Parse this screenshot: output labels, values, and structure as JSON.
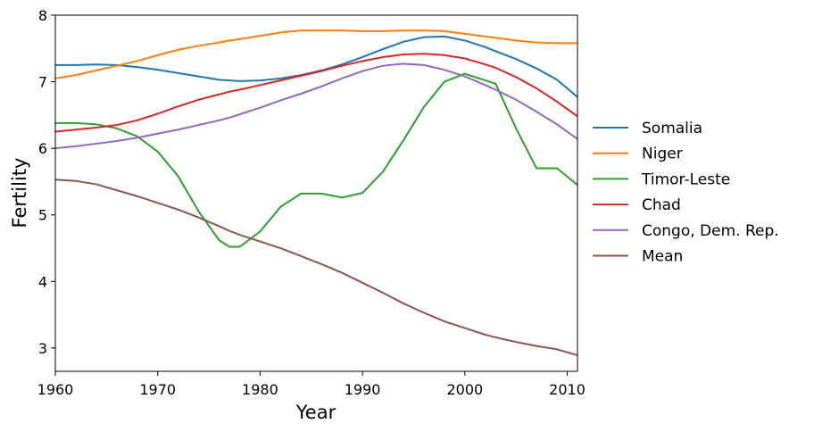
{
  "chart_data": {
    "type": "line",
    "xlabel": "Year",
    "ylabel": "Fertility",
    "x": [
      1960,
      1962,
      1964,
      1966,
      1968,
      1970,
      1972,
      1974,
      1976,
      1977,
      1978,
      1980,
      1982,
      1984,
      1986,
      1988,
      1990,
      1992,
      1994,
      1996,
      1998,
      2000,
      2002,
      2003,
      2005,
      2007,
      2009,
      2011
    ],
    "series": [
      {
        "name": "Somalia",
        "color": "#1f77b4",
        "values": [
          7.25,
          7.25,
          7.26,
          7.25,
          7.22,
          7.18,
          7.13,
          7.08,
          7.03,
          7.02,
          7.01,
          7.02,
          7.05,
          7.1,
          7.17,
          7.26,
          7.37,
          7.49,
          7.6,
          7.67,
          7.68,
          7.62,
          7.52,
          7.46,
          7.34,
          7.2,
          7.03,
          6.77
        ]
      },
      {
        "name": "Niger",
        "color": "#ff7f0e",
        "values": [
          7.05,
          7.1,
          7.17,
          7.24,
          7.31,
          7.4,
          7.48,
          7.54,
          7.59,
          7.62,
          7.64,
          7.69,
          7.74,
          7.77,
          7.77,
          7.77,
          7.76,
          7.76,
          7.77,
          7.77,
          7.76,
          7.72,
          7.68,
          7.66,
          7.62,
          7.59,
          7.58,
          7.58
        ]
      },
      {
        "name": "Timor-Leste",
        "color": "#2ca02c",
        "values": [
          6.38,
          6.38,
          6.36,
          6.3,
          6.18,
          5.95,
          5.58,
          5.05,
          4.62,
          4.52,
          4.52,
          4.75,
          5.12,
          5.32,
          5.32,
          5.26,
          5.33,
          5.65,
          6.12,
          6.62,
          7.0,
          7.12,
          7.02,
          6.97,
          6.3,
          5.7,
          5.7,
          5.45
        ]
      },
      {
        "name": "Chad",
        "color": "#d62728",
        "values": [
          6.25,
          6.28,
          6.31,
          6.35,
          6.42,
          6.52,
          6.63,
          6.73,
          6.81,
          6.85,
          6.88,
          6.95,
          7.02,
          7.09,
          7.16,
          7.24,
          7.31,
          7.37,
          7.41,
          7.42,
          7.4,
          7.35,
          7.26,
          7.21,
          7.07,
          6.9,
          6.7,
          6.48
        ]
      },
      {
        "name": "Congo, Dem. Rep.",
        "color": "#9467bd",
        "values": [
          6.0,
          6.03,
          6.07,
          6.11,
          6.16,
          6.22,
          6.28,
          6.35,
          6.42,
          6.46,
          6.51,
          6.61,
          6.72,
          6.82,
          6.93,
          7.05,
          7.16,
          7.24,
          7.27,
          7.25,
          7.18,
          7.08,
          6.95,
          6.88,
          6.73,
          6.55,
          6.36,
          6.14
        ]
      },
      {
        "name": "Mean",
        "color": "#8c564b",
        "values": [
          5.53,
          5.51,
          5.46,
          5.37,
          5.28,
          5.18,
          5.08,
          4.96,
          4.83,
          4.76,
          4.7,
          4.6,
          4.5,
          4.38,
          4.26,
          4.13,
          3.98,
          3.83,
          3.67,
          3.53,
          3.4,
          3.3,
          3.2,
          3.16,
          3.09,
          3.03,
          2.98,
          2.89
        ]
      }
    ],
    "xlim": [
      1960,
      2011
    ],
    "ylim": [
      2.65,
      8.0
    ],
    "xticks": [
      1960,
      1970,
      1980,
      1990,
      2000,
      2010
    ],
    "yticks": [
      3,
      4,
      5,
      6,
      7,
      8
    ],
    "grid": false,
    "legend": "right"
  }
}
